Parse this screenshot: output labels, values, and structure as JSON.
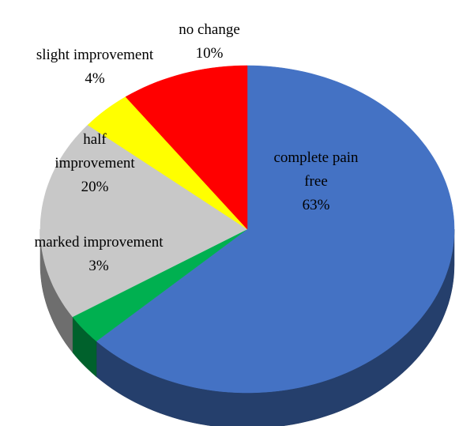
{
  "chart_data": {
    "type": "pie",
    "categories": [
      "complete pain free",
      "marked improvement",
      "half improvement",
      "slight improvement",
      "no change"
    ],
    "values": [
      63,
      3,
      20,
      4,
      10
    ],
    "value_labels": [
      "63%",
      "3%",
      "20%",
      "4%",
      "10%"
    ],
    "colors": [
      "#4472c4",
      "#00b050",
      "#c8c8c8",
      "#ffff00",
      "#ff0000"
    ]
  }
}
